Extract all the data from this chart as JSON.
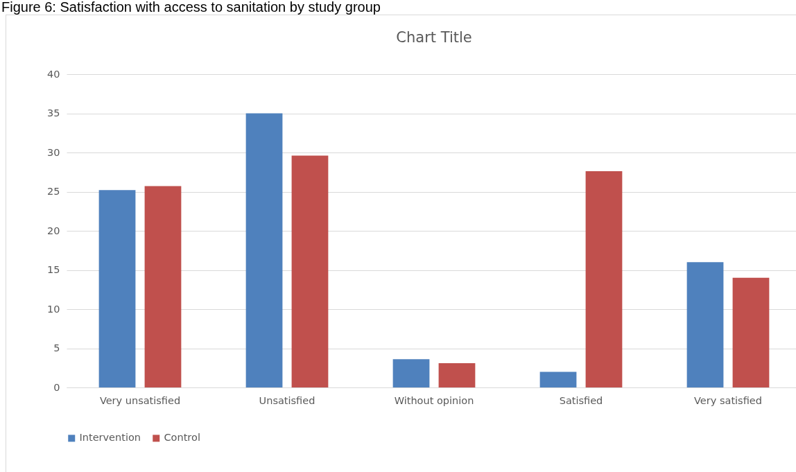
{
  "chart_data": {
    "type": "bar",
    "title": "Figure 6: Satisfaction with access to sanitation by study group",
    "subtitle": "Chart Title",
    "categories": [
      "Very unsatisfied",
      "Unsatisfied",
      "Without opinion",
      "Satisfied",
      "Very satisfied"
    ],
    "series": [
      {
        "name": "Intervention",
        "color": "#4f81bd",
        "values": [
          25.2,
          35.0,
          3.6,
          2.0,
          16.0
        ]
      },
      {
        "name": "Control",
        "color": "#c0504d",
        "values": [
          25.7,
          29.6,
          3.1,
          27.6,
          14.0
        ]
      }
    ],
    "ylim": [
      0,
      40
    ],
    "yticks": [
      0,
      5,
      10,
      15,
      20,
      25,
      30,
      35,
      40
    ],
    "grid": "y",
    "legend": "bottom"
  }
}
